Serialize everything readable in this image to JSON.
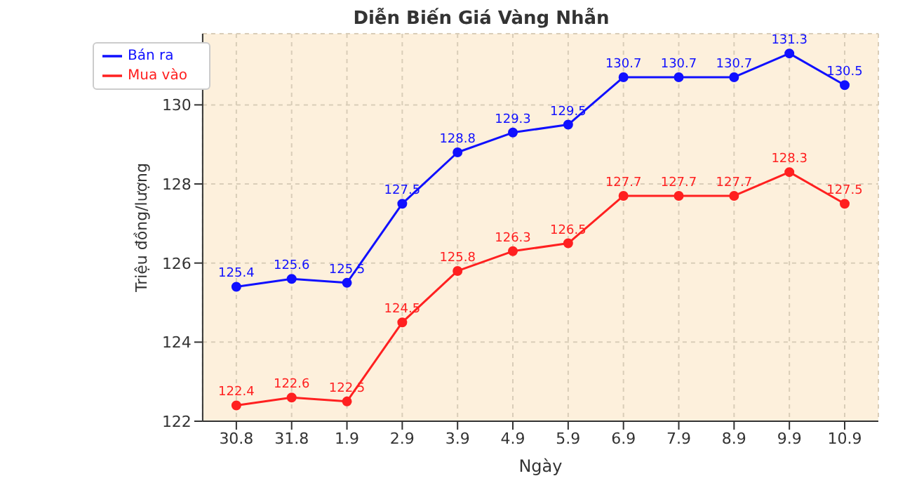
{
  "chart_data": {
    "type": "line",
    "title": "Diễn Biến Giá Vàng Nhẫn",
    "xlabel": "Ngày",
    "ylabel": "Triệu đồng/lượng",
    "categories": [
      "30.8",
      "31.8",
      "1.9",
      "2.9",
      "3.9",
      "4.9",
      "5.9",
      "6.9",
      "7.9",
      "8.9",
      "9.9",
      "10.9"
    ],
    "series": [
      {
        "name": "Mua vào",
        "color": "#ff2020",
        "values": [
          122.4,
          122.6,
          122.5,
          124.5,
          125.8,
          126.3,
          126.5,
          127.7,
          127.7,
          127.7,
          128.3,
          127.5
        ]
      },
      {
        "name": "Bán ra",
        "color": "#1010ff",
        "values": [
          125.4,
          125.6,
          125.5,
          127.5,
          128.8,
          129.3,
          129.5,
          130.7,
          130.7,
          130.7,
          131.3,
          130.5
        ]
      }
    ],
    "ylim": [
      122,
      131.8
    ],
    "yticks": [
      122,
      124,
      126,
      128,
      130
    ],
    "grid": true,
    "legend": "top left",
    "marker": "circle",
    "line_style": "solid",
    "data_labels": true
  }
}
